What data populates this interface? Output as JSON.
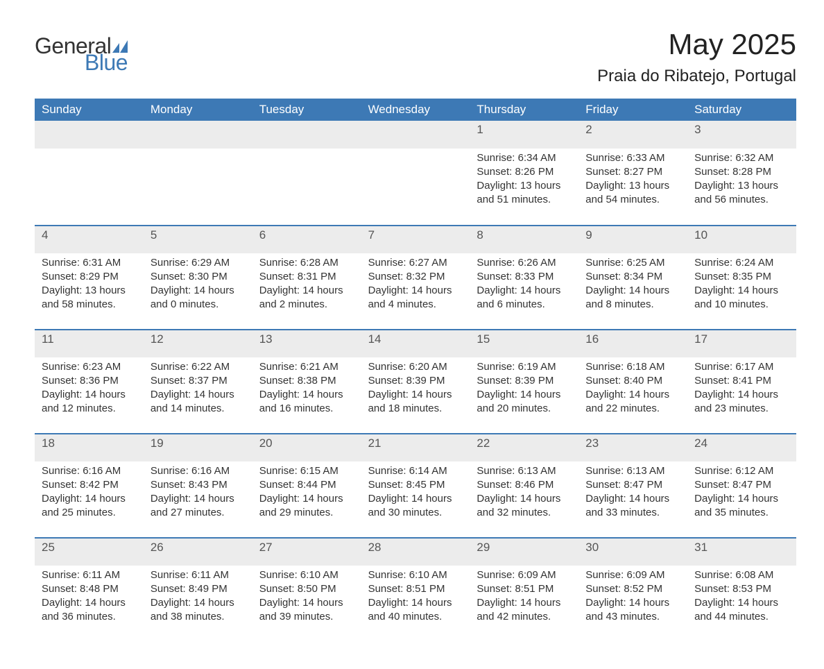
{
  "logo": {
    "general": "General",
    "blue": "Blue",
    "flag_color": "#3d79b5"
  },
  "title": {
    "month": "May 2025",
    "location": "Praia do Ribatejo, Portugal"
  },
  "colors": {
    "header_bg": "#3d79b5",
    "header_text": "#ffffff",
    "daynum_bg": "#ececec",
    "week_border": "#3d79b5",
    "body_text": "#333333",
    "background": "#ffffff"
  },
  "day_names": [
    "Sunday",
    "Monday",
    "Tuesday",
    "Wednesday",
    "Thursday",
    "Friday",
    "Saturday"
  ],
  "weeks": [
    [
      null,
      null,
      null,
      null,
      {
        "num": "1",
        "sunrise": "Sunrise: 6:34 AM",
        "sunset": "Sunset: 8:26 PM",
        "daylight1": "Daylight: 13 hours",
        "daylight2": "and 51 minutes."
      },
      {
        "num": "2",
        "sunrise": "Sunrise: 6:33 AM",
        "sunset": "Sunset: 8:27 PM",
        "daylight1": "Daylight: 13 hours",
        "daylight2": "and 54 minutes."
      },
      {
        "num": "3",
        "sunrise": "Sunrise: 6:32 AM",
        "sunset": "Sunset: 8:28 PM",
        "daylight1": "Daylight: 13 hours",
        "daylight2": "and 56 minutes."
      }
    ],
    [
      {
        "num": "4",
        "sunrise": "Sunrise: 6:31 AM",
        "sunset": "Sunset: 8:29 PM",
        "daylight1": "Daylight: 13 hours",
        "daylight2": "and 58 minutes."
      },
      {
        "num": "5",
        "sunrise": "Sunrise: 6:29 AM",
        "sunset": "Sunset: 8:30 PM",
        "daylight1": "Daylight: 14 hours",
        "daylight2": "and 0 minutes."
      },
      {
        "num": "6",
        "sunrise": "Sunrise: 6:28 AM",
        "sunset": "Sunset: 8:31 PM",
        "daylight1": "Daylight: 14 hours",
        "daylight2": "and 2 minutes."
      },
      {
        "num": "7",
        "sunrise": "Sunrise: 6:27 AM",
        "sunset": "Sunset: 8:32 PM",
        "daylight1": "Daylight: 14 hours",
        "daylight2": "and 4 minutes."
      },
      {
        "num": "8",
        "sunrise": "Sunrise: 6:26 AM",
        "sunset": "Sunset: 8:33 PM",
        "daylight1": "Daylight: 14 hours",
        "daylight2": "and 6 minutes."
      },
      {
        "num": "9",
        "sunrise": "Sunrise: 6:25 AM",
        "sunset": "Sunset: 8:34 PM",
        "daylight1": "Daylight: 14 hours",
        "daylight2": "and 8 minutes."
      },
      {
        "num": "10",
        "sunrise": "Sunrise: 6:24 AM",
        "sunset": "Sunset: 8:35 PM",
        "daylight1": "Daylight: 14 hours",
        "daylight2": "and 10 minutes."
      }
    ],
    [
      {
        "num": "11",
        "sunrise": "Sunrise: 6:23 AM",
        "sunset": "Sunset: 8:36 PM",
        "daylight1": "Daylight: 14 hours",
        "daylight2": "and 12 minutes."
      },
      {
        "num": "12",
        "sunrise": "Sunrise: 6:22 AM",
        "sunset": "Sunset: 8:37 PM",
        "daylight1": "Daylight: 14 hours",
        "daylight2": "and 14 minutes."
      },
      {
        "num": "13",
        "sunrise": "Sunrise: 6:21 AM",
        "sunset": "Sunset: 8:38 PM",
        "daylight1": "Daylight: 14 hours",
        "daylight2": "and 16 minutes."
      },
      {
        "num": "14",
        "sunrise": "Sunrise: 6:20 AM",
        "sunset": "Sunset: 8:39 PM",
        "daylight1": "Daylight: 14 hours",
        "daylight2": "and 18 minutes."
      },
      {
        "num": "15",
        "sunrise": "Sunrise: 6:19 AM",
        "sunset": "Sunset: 8:39 PM",
        "daylight1": "Daylight: 14 hours",
        "daylight2": "and 20 minutes."
      },
      {
        "num": "16",
        "sunrise": "Sunrise: 6:18 AM",
        "sunset": "Sunset: 8:40 PM",
        "daylight1": "Daylight: 14 hours",
        "daylight2": "and 22 minutes."
      },
      {
        "num": "17",
        "sunrise": "Sunrise: 6:17 AM",
        "sunset": "Sunset: 8:41 PM",
        "daylight1": "Daylight: 14 hours",
        "daylight2": "and 23 minutes."
      }
    ],
    [
      {
        "num": "18",
        "sunrise": "Sunrise: 6:16 AM",
        "sunset": "Sunset: 8:42 PM",
        "daylight1": "Daylight: 14 hours",
        "daylight2": "and 25 minutes."
      },
      {
        "num": "19",
        "sunrise": "Sunrise: 6:16 AM",
        "sunset": "Sunset: 8:43 PM",
        "daylight1": "Daylight: 14 hours",
        "daylight2": "and 27 minutes."
      },
      {
        "num": "20",
        "sunrise": "Sunrise: 6:15 AM",
        "sunset": "Sunset: 8:44 PM",
        "daylight1": "Daylight: 14 hours",
        "daylight2": "and 29 minutes."
      },
      {
        "num": "21",
        "sunrise": "Sunrise: 6:14 AM",
        "sunset": "Sunset: 8:45 PM",
        "daylight1": "Daylight: 14 hours",
        "daylight2": "and 30 minutes."
      },
      {
        "num": "22",
        "sunrise": "Sunrise: 6:13 AM",
        "sunset": "Sunset: 8:46 PM",
        "daylight1": "Daylight: 14 hours",
        "daylight2": "and 32 minutes."
      },
      {
        "num": "23",
        "sunrise": "Sunrise: 6:13 AM",
        "sunset": "Sunset: 8:47 PM",
        "daylight1": "Daylight: 14 hours",
        "daylight2": "and 33 minutes."
      },
      {
        "num": "24",
        "sunrise": "Sunrise: 6:12 AM",
        "sunset": "Sunset: 8:47 PM",
        "daylight1": "Daylight: 14 hours",
        "daylight2": "and 35 minutes."
      }
    ],
    [
      {
        "num": "25",
        "sunrise": "Sunrise: 6:11 AM",
        "sunset": "Sunset: 8:48 PM",
        "daylight1": "Daylight: 14 hours",
        "daylight2": "and 36 minutes."
      },
      {
        "num": "26",
        "sunrise": "Sunrise: 6:11 AM",
        "sunset": "Sunset: 8:49 PM",
        "daylight1": "Daylight: 14 hours",
        "daylight2": "and 38 minutes."
      },
      {
        "num": "27",
        "sunrise": "Sunrise: 6:10 AM",
        "sunset": "Sunset: 8:50 PM",
        "daylight1": "Daylight: 14 hours",
        "daylight2": "and 39 minutes."
      },
      {
        "num": "28",
        "sunrise": "Sunrise: 6:10 AM",
        "sunset": "Sunset: 8:51 PM",
        "daylight1": "Daylight: 14 hours",
        "daylight2": "and 40 minutes."
      },
      {
        "num": "29",
        "sunrise": "Sunrise: 6:09 AM",
        "sunset": "Sunset: 8:51 PM",
        "daylight1": "Daylight: 14 hours",
        "daylight2": "and 42 minutes."
      },
      {
        "num": "30",
        "sunrise": "Sunrise: 6:09 AM",
        "sunset": "Sunset: 8:52 PM",
        "daylight1": "Daylight: 14 hours",
        "daylight2": "and 43 minutes."
      },
      {
        "num": "31",
        "sunrise": "Sunrise: 6:08 AM",
        "sunset": "Sunset: 8:53 PM",
        "daylight1": "Daylight: 14 hours",
        "daylight2": "and 44 minutes."
      }
    ]
  ]
}
